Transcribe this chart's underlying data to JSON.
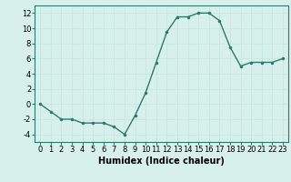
{
  "x": [
    0,
    1,
    2,
    3,
    4,
    5,
    6,
    7,
    8,
    9,
    10,
    11,
    12,
    13,
    14,
    15,
    16,
    17,
    18,
    19,
    20,
    21,
    22,
    23
  ],
  "y": [
    0,
    -1,
    -2,
    -2,
    -2.5,
    -2.5,
    -2.5,
    -3,
    -4,
    -1.5,
    1.5,
    5.5,
    9.5,
    11.5,
    11.5,
    12,
    12,
    11,
    7.5,
    5,
    5.5,
    5.5,
    5.5,
    6
  ],
  "line_color": "#2d7a6e",
  "marker": ".",
  "marker_size": 3,
  "linewidth": 1.0,
  "xlabel": "Humidex (Indice chaleur)",
  "xlabel_fontsize": 7,
  "xlim": [
    -0.5,
    23.5
  ],
  "ylim": [
    -5,
    13
  ],
  "yticks": [
    -4,
    -2,
    0,
    2,
    4,
    6,
    8,
    10,
    12
  ],
  "xticks": [
    0,
    1,
    2,
    3,
    4,
    5,
    6,
    7,
    8,
    9,
    10,
    11,
    12,
    13,
    14,
    15,
    16,
    17,
    18,
    19,
    20,
    21,
    22,
    23
  ],
  "grid_color": "#c8e8e0",
  "bg_color": "#d8f0ec",
  "tick_fontsize": 6,
  "spine_color": "#2d7a6e"
}
